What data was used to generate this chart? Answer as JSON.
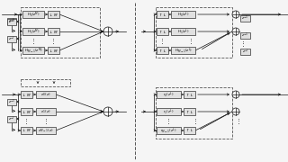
{
  "fig_bg": "#f5f5f5",
  "block_color": "#e0e0e0",
  "block_edge": "#333333",
  "line_color": "#111111",
  "text_color": "#111111",
  "dashed_color": "#555555",
  "figsize": [
    3.2,
    1.8
  ],
  "dpi": 100
}
